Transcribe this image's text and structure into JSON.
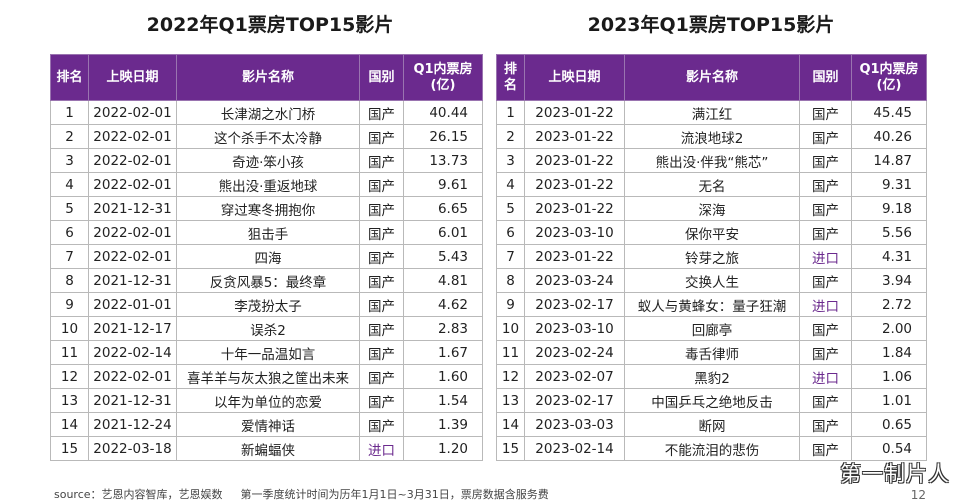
{
  "watermark": "第一制片人",
  "page_number": "12",
  "source_left": "source：艺恩内容智库，艺恩娱数",
  "source_right": "第一季度统计时间为历年1月1日~3月31日，票房数据含服务费",
  "chart_data": [
    {
      "type": "table",
      "title": "2022年Q1票房TOP15影片",
      "headers": [
        "排名",
        "上映日期",
        "影片名称",
        "国别",
        "Q1内票房\n(亿)"
      ],
      "rows": [
        [
          "1",
          "2022-02-01",
          "长津湖之水门桥",
          "国产",
          "40.44"
        ],
        [
          "2",
          "2022-02-01",
          "这个杀手不太冷静",
          "国产",
          "26.15"
        ],
        [
          "3",
          "2022-02-01",
          "奇迹·笨小孩",
          "国产",
          "13.73"
        ],
        [
          "4",
          "2022-02-01",
          "熊出没·重返地球",
          "国产",
          "9.61"
        ],
        [
          "5",
          "2021-12-31",
          "穿过寒冬拥抱你",
          "国产",
          "6.65"
        ],
        [
          "6",
          "2022-02-01",
          "狙击手",
          "国产",
          "6.01"
        ],
        [
          "7",
          "2022-02-01",
          "四海",
          "国产",
          "5.43"
        ],
        [
          "8",
          "2021-12-31",
          "反贪风暴5：最终章",
          "国产",
          "4.81"
        ],
        [
          "9",
          "2022-01-01",
          "李茂扮太子",
          "国产",
          "4.62"
        ],
        [
          "10",
          "2021-12-17",
          "误杀2",
          "国产",
          "2.83"
        ],
        [
          "11",
          "2022-02-14",
          "十年一品温如言",
          "国产",
          "1.67"
        ],
        [
          "12",
          "2022-02-01",
          "喜羊羊与灰太狼之筐出未来",
          "国产",
          "1.60"
        ],
        [
          "13",
          "2021-12-31",
          "以年为单位的恋爱",
          "国产",
          "1.54"
        ],
        [
          "14",
          "2021-12-24",
          "爱情神话",
          "国产",
          "1.39"
        ],
        [
          "15",
          "2022-03-18",
          "新蝙蝠侠",
          "进口",
          "1.20"
        ]
      ]
    },
    {
      "type": "table",
      "title": "2023年Q1票房TOP15影片",
      "headers": [
        "排\n名",
        "上映日期",
        "影片名称",
        "国别",
        "Q1内票房\n(亿)"
      ],
      "rows": [
        [
          "1",
          "2023-01-22",
          "满江红",
          "国产",
          "45.45"
        ],
        [
          "2",
          "2023-01-22",
          "流浪地球2",
          "国产",
          "40.26"
        ],
        [
          "3",
          "2023-01-22",
          "熊出没·伴我“熊芯”",
          "国产",
          "14.87"
        ],
        [
          "4",
          "2023-01-22",
          "无名",
          "国产",
          "9.31"
        ],
        [
          "5",
          "2023-01-22",
          "深海",
          "国产",
          "9.18"
        ],
        [
          "6",
          "2023-03-10",
          "保你平安",
          "国产",
          "5.56"
        ],
        [
          "7",
          "2023-01-22",
          "铃芽之旅",
          "进口",
          "4.31"
        ],
        [
          "8",
          "2023-03-24",
          "交换人生",
          "国产",
          "3.94"
        ],
        [
          "9",
          "2023-02-17",
          "蚁人与黄蜂女：量子狂潮",
          "进口",
          "2.72"
        ],
        [
          "10",
          "2023-03-10",
          "回廊亭",
          "国产",
          "2.00"
        ],
        [
          "11",
          "2023-02-24",
          "毒舌律师",
          "国产",
          "1.84"
        ],
        [
          "12",
          "2023-02-07",
          "黑豹2",
          "进口",
          "1.06"
        ],
        [
          "13",
          "2023-02-17",
          "中国乒乓之绝地反击",
          "国产",
          "1.01"
        ],
        [
          "14",
          "2023-03-03",
          "断网",
          "国产",
          "0.65"
        ],
        [
          "15",
          "2023-02-14",
          "不能流泪的悲伤",
          "国产",
          "0.54"
        ]
      ]
    }
  ],
  "colors": {
    "header_bg": "#6b2a8e",
    "import_text": "#6b2a8e",
    "border": "#b9b9b9"
  }
}
